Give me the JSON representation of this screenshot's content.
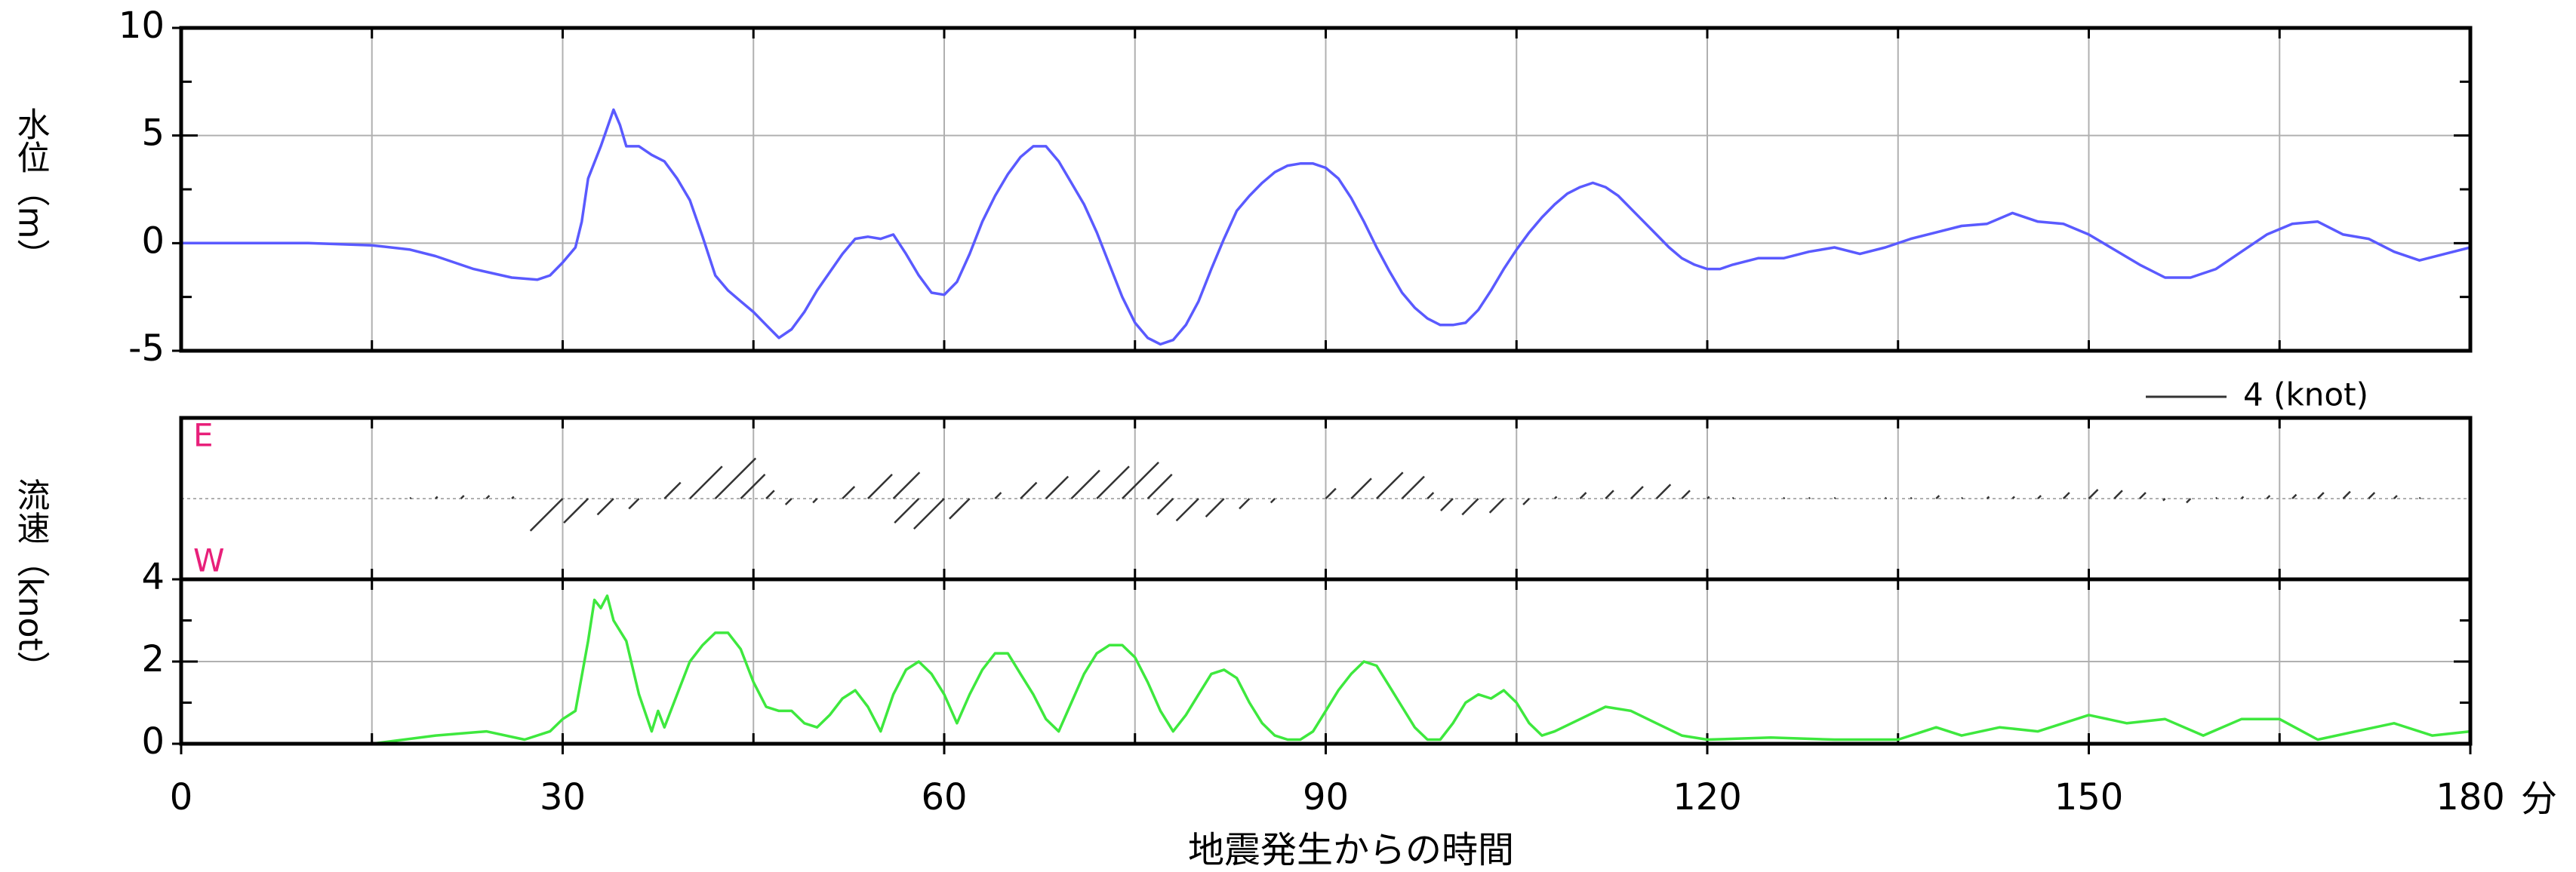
{
  "chart_data": [
    {
      "type": "line",
      "ylabel": "水位（m）",
      "color": "#5a5aff",
      "xlim": [
        0,
        180
      ],
      "xgrid": [
        0,
        15,
        30,
        45,
        60,
        75,
        90,
        105,
        120,
        135,
        150,
        165,
        180
      ],
      "ylim": [
        -5,
        10
      ],
      "yticks": [
        -5,
        0,
        5,
        10
      ],
      "ygrid": [
        0,
        5
      ],
      "yminor": [
        -2.5,
        2.5,
        7.5
      ],
      "x": [
        0,
        10,
        15,
        18,
        20,
        23,
        26,
        28,
        29,
        30,
        31,
        31.5,
        32,
        33,
        34,
        34.5,
        35,
        36,
        37,
        38,
        39,
        40,
        41,
        42,
        43,
        44,
        45,
        46,
        47,
        48,
        49,
        50,
        52,
        53,
        54,
        55,
        56,
        57,
        58,
        59,
        60,
        61,
        62,
        63,
        64,
        65,
        66,
        67,
        68,
        69,
        70,
        71,
        72,
        73,
        74,
        75,
        76,
        77,
        78,
        79,
        80,
        81,
        82,
        83,
        84,
        85,
        86,
        87,
        88,
        89,
        90,
        91,
        92,
        93,
        94,
        95,
        96,
        97,
        98,
        99,
        100,
        101,
        102,
        103,
        104,
        105,
        106,
        107,
        108,
        109,
        110,
        111,
        112,
        113,
        114,
        115,
        116,
        117,
        118,
        119,
        120,
        121,
        122,
        124,
        126,
        128,
        130,
        132,
        134,
        136,
        138,
        140,
        142,
        144,
        146,
        148,
        150,
        152,
        154,
        156,
        158,
        160,
        162,
        164,
        166,
        168,
        170,
        172,
        174,
        176,
        178,
        180
      ],
      "values": [
        0,
        0,
        -0.1,
        -0.3,
        -0.6,
        -1.2,
        -1.6,
        -1.7,
        -1.5,
        -0.9,
        -0.2,
        1,
        3,
        4.5,
        6.2,
        5.5,
        4.5,
        4.5,
        4.1,
        3.8,
        3,
        2,
        0.3,
        -1.5,
        -2.2,
        -2.7,
        -3.2,
        -3.8,
        -4.4,
        -4,
        -3.2,
        -2.2,
        -0.5,
        0.2,
        0.3,
        0.2,
        0.4,
        -0.5,
        -1.5,
        -2.3,
        -2.4,
        -1.8,
        -0.5,
        1,
        2.2,
        3.2,
        4,
        4.5,
        4.5,
        3.8,
        2.8,
        1.8,
        0.5,
        -1,
        -2.5,
        -3.7,
        -4.4,
        -4.7,
        -4.5,
        -3.8,
        -2.7,
        -1.2,
        0.2,
        1.5,
        2.2,
        2.8,
        3.3,
        3.6,
        3.7,
        3.7,
        3.5,
        3,
        2.1,
        1,
        -0.2,
        -1.3,
        -2.3,
        -3,
        -3.5,
        -3.8,
        -3.8,
        -3.7,
        -3.1,
        -2.2,
        -1.2,
        -0.3,
        0.5,
        1.2,
        1.8,
        2.3,
        2.6,
        2.8,
        2.6,
        2.2,
        1.6,
        1,
        0.4,
        -0.2,
        -0.7,
        -1,
        -1.2,
        -1.2,
        -1,
        -0.7,
        -0.7,
        -0.4,
        -0.2,
        -0.5,
        -0.2,
        0.2,
        0.5,
        0.8,
        0.9,
        1.4,
        1,
        0.9,
        0.4,
        -0.3,
        -1,
        -1.6,
        -1.6,
        -1.2,
        -0.4,
        0.4,
        0.9,
        1,
        0.4,
        0.2,
        -0.4,
        -0.8,
        -0.5,
        -0.2
      ]
    },
    {
      "type": "stick",
      "ylabel": "流速（knot）",
      "color": "#333333",
      "top_label": "E",
      "bottom_label": "W",
      "label_color": "#e8207a",
      "legend": {
        "value": 4,
        "label": "4 (knot)"
      },
      "xlim": [
        0,
        180
      ],
      "xgrid": [
        0,
        15,
        30,
        45,
        60,
        75,
        90,
        105,
        120,
        135,
        150,
        165,
        180
      ],
      "ylim": [
        -4,
        4
      ],
      "x": [
        12,
        14,
        16,
        18,
        20,
        22,
        24,
        26,
        28,
        30,
        32,
        34,
        36,
        38,
        40,
        42,
        44,
        46,
        48,
        50,
        52,
        54,
        56,
        58,
        60,
        62,
        64,
        66,
        68,
        70,
        72,
        74,
        76,
        78,
        80,
        82,
        84,
        86,
        88,
        90,
        92,
        94,
        96,
        98,
        100,
        102,
        104,
        106,
        108,
        110,
        112,
        114,
        116,
        118,
        120,
        122,
        124,
        126,
        128,
        130,
        132,
        134,
        136,
        138,
        140,
        142,
        144,
        146,
        148,
        150,
        152,
        154,
        156,
        158,
        160,
        162,
        164,
        166,
        168,
        170,
        172,
        174,
        176,
        178,
        180
      ],
      "values": [
        0,
        0,
        0,
        0.05,
        0.1,
        0.15,
        0.15,
        0.1,
        0,
        -1.6,
        -1.2,
        -0.8,
        -0.5,
        0.8,
        1.6,
        2,
        1.2,
        0.4,
        -0.3,
        -0.2,
        0.6,
        1.2,
        1.3,
        -1.2,
        -1.5,
        -1,
        0.3,
        0.8,
        1.1,
        1.4,
        1.6,
        1.8,
        1.2,
        -0.8,
        -1.1,
        -0.9,
        -0.5,
        -0.2,
        0,
        0.5,
        1,
        1.3,
        1.1,
        0.3,
        -0.6,
        -0.8,
        -0.7,
        -0.3,
        0.1,
        0.3,
        0.4,
        0.6,
        0.7,
        0.4,
        0.1,
        0.05,
        0,
        0.05,
        0.05,
        0.05,
        0,
        0.05,
        0.05,
        0.15,
        0.05,
        0.1,
        0.1,
        0.15,
        0.3,
        0.45,
        0.4,
        0.3,
        -0.1,
        -0.2,
        0.05,
        0.1,
        0.15,
        0.2,
        0.3,
        0.35,
        0.3,
        0.15,
        0.05,
        0,
        -0.05
      ]
    },
    {
      "type": "line",
      "color": "#3ee83e",
      "xlabel": "地震発生からの時間",
      "x_unit": "分",
      "xlim": [
        0,
        180
      ],
      "xticks": [
        0,
        30,
        60,
        90,
        120,
        150,
        180
      ],
      "xgrid": [
        0,
        15,
        30,
        45,
        60,
        75,
        90,
        105,
        120,
        135,
        150,
        165,
        180
      ],
      "ylim": [
        0,
        4
      ],
      "yticks": [
        0,
        2,
        4
      ],
      "ygrid": [
        2
      ],
      "yminor": [
        1,
        3
      ],
      "x": [
        0,
        15,
        20,
        24,
        27,
        29,
        30,
        31,
        32,
        32.5,
        33,
        33.5,
        34,
        35,
        36,
        37,
        37.5,
        38,
        39,
        40,
        41,
        42,
        43,
        44,
        45,
        46,
        47,
        48,
        49,
        50,
        51,
        52,
        53,
        54,
        55,
        56,
        57,
        58,
        59,
        60,
        61,
        62,
        63,
        64,
        65,
        66,
        67,
        68,
        69,
        70,
        71,
        72,
        73,
        74,
        75,
        76,
        77,
        78,
        79,
        80,
        81,
        82,
        83,
        84,
        85,
        86,
        87,
        88,
        89,
        90,
        91,
        92,
        93,
        94,
        95,
        96,
        97,
        98,
        99,
        100,
        101,
        102,
        103,
        104,
        105,
        106,
        107,
        108,
        110,
        112,
        114,
        116,
        118,
        120,
        125,
        130,
        135,
        138,
        140,
        143,
        146,
        150,
        153,
        156,
        159,
        162,
        165,
        168,
        171,
        174,
        177,
        180
      ],
      "values": [
        0,
        0,
        0.2,
        0.3,
        0.1,
        0.3,
        0.6,
        0.8,
        2.5,
        3.5,
        3.3,
        3.6,
        3,
        2.5,
        1.2,
        0.3,
        0.8,
        0.4,
        1.2,
        2,
        2.4,
        2.7,
        2.7,
        2.3,
        1.5,
        0.9,
        0.8,
        0.8,
        0.5,
        0.4,
        0.7,
        1.1,
        1.3,
        0.9,
        0.3,
        1.2,
        1.8,
        2,
        1.7,
        1.2,
        0.5,
        1.2,
        1.8,
        2.2,
        2.2,
        1.7,
        1.2,
        0.6,
        0.3,
        1,
        1.7,
        2.2,
        2.4,
        2.4,
        2.1,
        1.5,
        0.8,
        0.3,
        0.7,
        1.2,
        1.7,
        1.8,
        1.6,
        1,
        0.5,
        0.2,
        0.1,
        0.1,
        0.3,
        0.8,
        1.3,
        1.7,
        2,
        1.9,
        1.4,
        0.9,
        0.4,
        0.1,
        0.1,
        0.5,
        1,
        1.2,
        1.1,
        1.3,
        1,
        0.5,
        0.2,
        0.3,
        0.6,
        0.9,
        0.8,
        0.5,
        0.2,
        0.1,
        0.15,
        0.1,
        0.1,
        0.4,
        0.2,
        0.4,
        0.3,
        0.7,
        0.5,
        0.6,
        0.2,
        0.6,
        0.6,
        0.1,
        0.3,
        0.5,
        0.2,
        0.3
      ]
    }
  ]
}
